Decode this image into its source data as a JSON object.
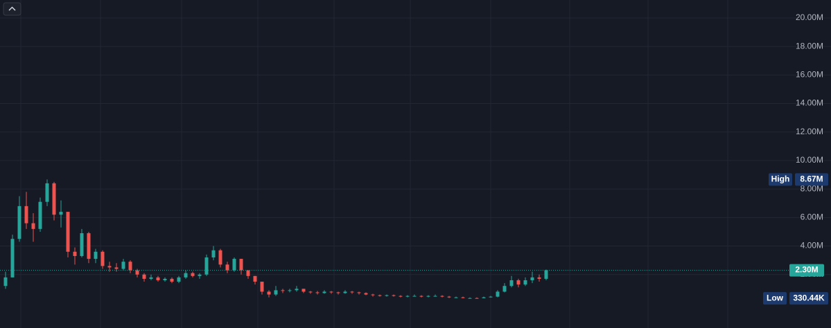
{
  "chart_data": {
    "type": "candlestick",
    "candles": [
      [
        1.2,
        2.2,
        1.0,
        1.8
      ],
      [
        1.8,
        4.8,
        1.8,
        4.5
      ],
      [
        4.5,
        7.5,
        4.3,
        6.8
      ],
      [
        6.8,
        7.8,
        5.2,
        5.6
      ],
      [
        5.6,
        6.3,
        4.3,
        5.2
      ],
      [
        5.2,
        7.4,
        5.0,
        7.1
      ],
      [
        7.1,
        8.67,
        6.8,
        8.4
      ],
      [
        8.4,
        8.5,
        5.8,
        6.2
      ],
      [
        6.2,
        7.2,
        5.3,
        6.4
      ],
      [
        6.4,
        6.3,
        3.2,
        3.6
      ],
      [
        3.6,
        3.9,
        2.7,
        3.3
      ],
      [
        3.3,
        5.2,
        3.2,
        4.9
      ],
      [
        4.9,
        5.0,
        2.8,
        3.1
      ],
      [
        3.1,
        3.8,
        2.8,
        3.6
      ],
      [
        3.6,
        3.7,
        2.4,
        2.6
      ],
      [
        2.6,
        2.9,
        2.2,
        2.5
      ],
      [
        2.5,
        2.8,
        2.2,
        2.4
      ],
      [
        2.4,
        3.1,
        2.3,
        2.9
      ],
      [
        2.9,
        3.0,
        2.1,
        2.3
      ],
      [
        2.3,
        2.4,
        1.8,
        2.0
      ],
      [
        2.0,
        2.1,
        1.5,
        1.7
      ],
      [
        1.7,
        2.0,
        1.6,
        1.8
      ],
      [
        1.8,
        1.9,
        1.5,
        1.6
      ],
      [
        1.6,
        1.8,
        1.5,
        1.7
      ],
      [
        1.7,
        1.8,
        1.4,
        1.5
      ],
      [
        1.5,
        1.9,
        1.4,
        1.8
      ],
      [
        1.8,
        2.3,
        1.7,
        2.1
      ],
      [
        2.1,
        2.2,
        1.8,
        1.9
      ],
      [
        1.9,
        2.1,
        1.7,
        2.0
      ],
      [
        2.0,
        3.4,
        1.9,
        3.2
      ],
      [
        3.2,
        4.0,
        3.0,
        3.7
      ],
      [
        3.7,
        3.8,
        2.5,
        2.7
      ],
      [
        2.7,
        2.9,
        2.1,
        2.3
      ],
      [
        2.3,
        3.2,
        2.2,
        3.1
      ],
      [
        3.1,
        3.1,
        2.0,
        2.3
      ],
      [
        2.3,
        2.3,
        1.7,
        1.9
      ],
      [
        1.9,
        1.9,
        1.3,
        1.5
      ],
      [
        1.5,
        1.5,
        0.6,
        0.8
      ],
      [
        0.8,
        0.9,
        0.4,
        0.6
      ],
      [
        0.6,
        1.2,
        0.5,
        0.9
      ],
      [
        0.9,
        1.0,
        0.7,
        0.85
      ],
      [
        0.85,
        1.0,
        0.75,
        0.9
      ],
      [
        0.9,
        1.2,
        0.8,
        1.0
      ],
      [
        1.0,
        1.0,
        0.7,
        0.8
      ],
      [
        0.8,
        0.85,
        0.65,
        0.75
      ],
      [
        0.75,
        0.85,
        0.6,
        0.7
      ],
      [
        0.7,
        0.9,
        0.65,
        0.8
      ],
      [
        0.8,
        0.85,
        0.65,
        0.75
      ],
      [
        0.75,
        0.8,
        0.6,
        0.7
      ],
      [
        0.7,
        0.9,
        0.65,
        0.8
      ],
      [
        0.8,
        0.85,
        0.65,
        0.75
      ],
      [
        0.75,
        0.8,
        0.6,
        0.7
      ],
      [
        0.7,
        0.75,
        0.55,
        0.6
      ],
      [
        0.6,
        0.65,
        0.45,
        0.55
      ],
      [
        0.55,
        0.6,
        0.45,
        0.5
      ],
      [
        0.5,
        0.6,
        0.45,
        0.55
      ],
      [
        0.55,
        0.6,
        0.45,
        0.5
      ],
      [
        0.5,
        0.55,
        0.4,
        0.45
      ],
      [
        0.45,
        0.55,
        0.4,
        0.5
      ],
      [
        0.5,
        0.6,
        0.45,
        0.5
      ],
      [
        0.5,
        0.55,
        0.4,
        0.45
      ],
      [
        0.45,
        0.55,
        0.4,
        0.5
      ],
      [
        0.5,
        0.6,
        0.45,
        0.5
      ],
      [
        0.5,
        0.55,
        0.4,
        0.45
      ],
      [
        0.45,
        0.5,
        0.35,
        0.4
      ],
      [
        0.4,
        0.45,
        0.35,
        0.4
      ],
      [
        0.4,
        0.45,
        0.33,
        0.35
      ],
      [
        0.35,
        0.4,
        0.33,
        0.35
      ],
      [
        0.35,
        0.4,
        0.33044,
        0.34
      ],
      [
        0.34,
        0.45,
        0.34,
        0.4
      ],
      [
        0.4,
        0.5,
        0.38,
        0.45
      ],
      [
        0.45,
        0.9,
        0.4,
        0.8
      ],
      [
        0.8,
        1.4,
        0.75,
        1.2
      ],
      [
        1.2,
        1.9,
        1.1,
        1.6
      ],
      [
        1.6,
        1.7,
        1.1,
        1.3
      ],
      [
        1.3,
        1.8,
        1.2,
        1.6
      ],
      [
        1.6,
        2.2,
        1.4,
        1.8
      ],
      [
        1.8,
        2.0,
        1.5,
        1.7
      ],
      [
        1.7,
        2.35,
        1.6,
        2.3
      ]
    ],
    "up_color": "#26a69a",
    "down_color": "#ef5350",
    "ylim": [
      -1.75,
      21.26
    ],
    "yticks": [
      {
        "value": 2,
        "label": "2.00M"
      },
      {
        "value": 4,
        "label": "4.00M"
      },
      {
        "value": 6,
        "label": "6.00M"
      },
      {
        "value": 8,
        "label": "8.00M"
      },
      {
        "value": 10,
        "label": "10.00M"
      },
      {
        "value": 12,
        "label": "12.00M"
      },
      {
        "value": 14,
        "label": "14.00M"
      },
      {
        "value": 16,
        "label": "16.00M"
      },
      {
        "value": 18,
        "label": "18.00M"
      },
      {
        "value": 20,
        "label": "20.00M"
      }
    ],
    "grid": true,
    "markers": [
      {
        "label": "High",
        "value": 8.67,
        "value_label": "8.67M"
      },
      {
        "value": 2.3,
        "value_label": "2.30M"
      },
      {
        "label": "Low",
        "value": 0.33044,
        "value_label": "330.44K"
      }
    ]
  }
}
